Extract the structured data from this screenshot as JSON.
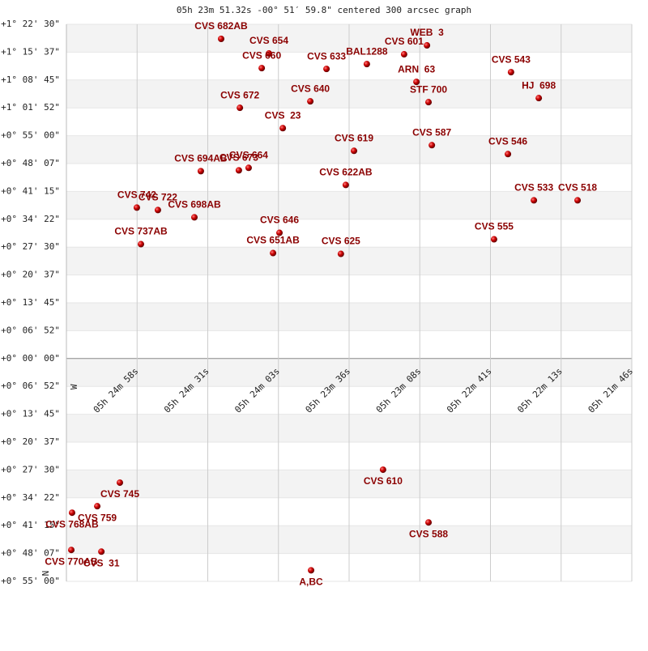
{
  "chart_data": {
    "type": "scatter",
    "title": "05h 23m 51.32s -00° 51′ 59.8\" centered 300 arcsec graph",
    "x_marker": "W",
    "y_marker": "N",
    "color": "#cc0000",
    "x": [
      265.6,
      247.0,
      249.8,
      224.6,
      208.9,
      194.4,
      185.5,
      189.6,
      184.9,
      152.8,
      142.0,
      230.9,
      258.3,
      241.6,
      213.9,
      183.6,
      154.0,
      273.5,
      258.7,
      254.9,
      217.1,
      143.9,
      126.9,
      298.4,
      290.2,
      276.0,
      242.9,
      296.8,
      245.4,
      219.0,
      159.4,
      202.6,
      305.0,
      313.8,
      323.6,
      184.9,
      323.9,
      312.2,
      230.6
    ],
    "values": [
      4734,
      4518,
      4301,
      4289,
      4361,
      4506,
      4638,
      4097,
      3797,
      4241,
      3857,
      3809,
      3713,
      3412,
      3076,
      3160,
      3028,
      2775,
      2787,
      2824,
      2571,
      2343,
      2343,
      2235,
      2199,
      2091,
      1862,
      1694,
      1562,
      1550,
      1766,
      -1646,
      -1838,
      -2187,
      -2283,
      -2427,
      -2835,
      -2860,
      -3136
    ],
    "point_labels": [
      "CVS 682AB",
      "CVS 654",
      "CVS 660",
      "CVS 633",
      "BAL1288",
      "CVS 601",
      "WEB  3",
      "ARN  63",
      "STF 700",
      "CVS 543",
      "HJ  698",
      "CVS 640",
      "CVS 672",
      "CVS  23",
      "CVS 619",
      "CVS 587",
      "CVS 546",
      "CVS 694AB",
      "CVS 673",
      "CVS 664",
      "CVS 622AB",
      "CVS 533",
      "CVS 518",
      "CVS 742",
      "CVS 722",
      "CVS 698AB",
      "CVS 646",
      "CVS 737AB",
      "CVS 651AB",
      "CVS 625",
      "CVS 555",
      "CVS 610",
      "CVS 745",
      "CVS 759",
      "CVS 768AB",
      "CVS 588",
      "CVS 770AB",
      "CVS  31",
      "A,BC"
    ],
    "xlim": [
      325.8,
      105.8
    ],
    "xticks": [
      {
        "value": 298.3,
        "label": "05h 24m 58s"
      },
      {
        "value": 270.8,
        "label": "05h 24m 31s"
      },
      {
        "value": 243.3,
        "label": "05h 24m 03s"
      },
      {
        "value": 215.8,
        "label": "05h 23m 36s"
      },
      {
        "value": 188.3,
        "label": "05h 23m 08s"
      },
      {
        "value": 160.8,
        "label": "05h 22m 41s"
      },
      {
        "value": 133.3,
        "label": "05h 22m 13s"
      },
      {
        "value": 105.8,
        "label": "05h 21m 46s"
      }
    ],
    "ylim": [
      -3300,
      4950
    ],
    "yticks": [
      {
        "value": 4950,
        "label": "+1° 22' 30\""
      },
      {
        "value": 4537.5,
        "label": "+1° 15' 37\""
      },
      {
        "value": 4125,
        "label": "+1° 08' 45\""
      },
      {
        "value": 3712.5,
        "label": "+1° 01' 52\""
      },
      {
        "value": 3300,
        "label": "+0° 55' 00\""
      },
      {
        "value": 2887.5,
        "label": "+0° 48' 07\""
      },
      {
        "value": 2475,
        "label": "+0° 41' 15\""
      },
      {
        "value": 2062.5,
        "label": "+0° 34' 22\""
      },
      {
        "value": 1650,
        "label": "+0° 27' 30\""
      },
      {
        "value": 1237.5,
        "label": "+0° 20' 37\""
      },
      {
        "value": 825,
        "label": "+0° 13' 45\""
      },
      {
        "value": 412.5,
        "label": "+0° 06' 52\""
      },
      {
        "value": 0,
        "label": "+0° 00' 00\""
      },
      {
        "value": -412.5,
        "label": "+0° 06' 52\""
      },
      {
        "value": -825,
        "label": "+0° 13' 45\""
      },
      {
        "value": -1237.5,
        "label": "+0° 20' 37\""
      },
      {
        "value": -1650,
        "label": "+0° 27' 30\""
      },
      {
        "value": -2062.5,
        "label": "+0° 34' 22\""
      },
      {
        "value": -2475,
        "label": "+0° 41' 15\""
      },
      {
        "value": -2887.5,
        "label": "+0° 48' 07\""
      },
      {
        "value": -3300,
        "label": "+0° 55' 00\""
      }
    ],
    "grid": true
  }
}
